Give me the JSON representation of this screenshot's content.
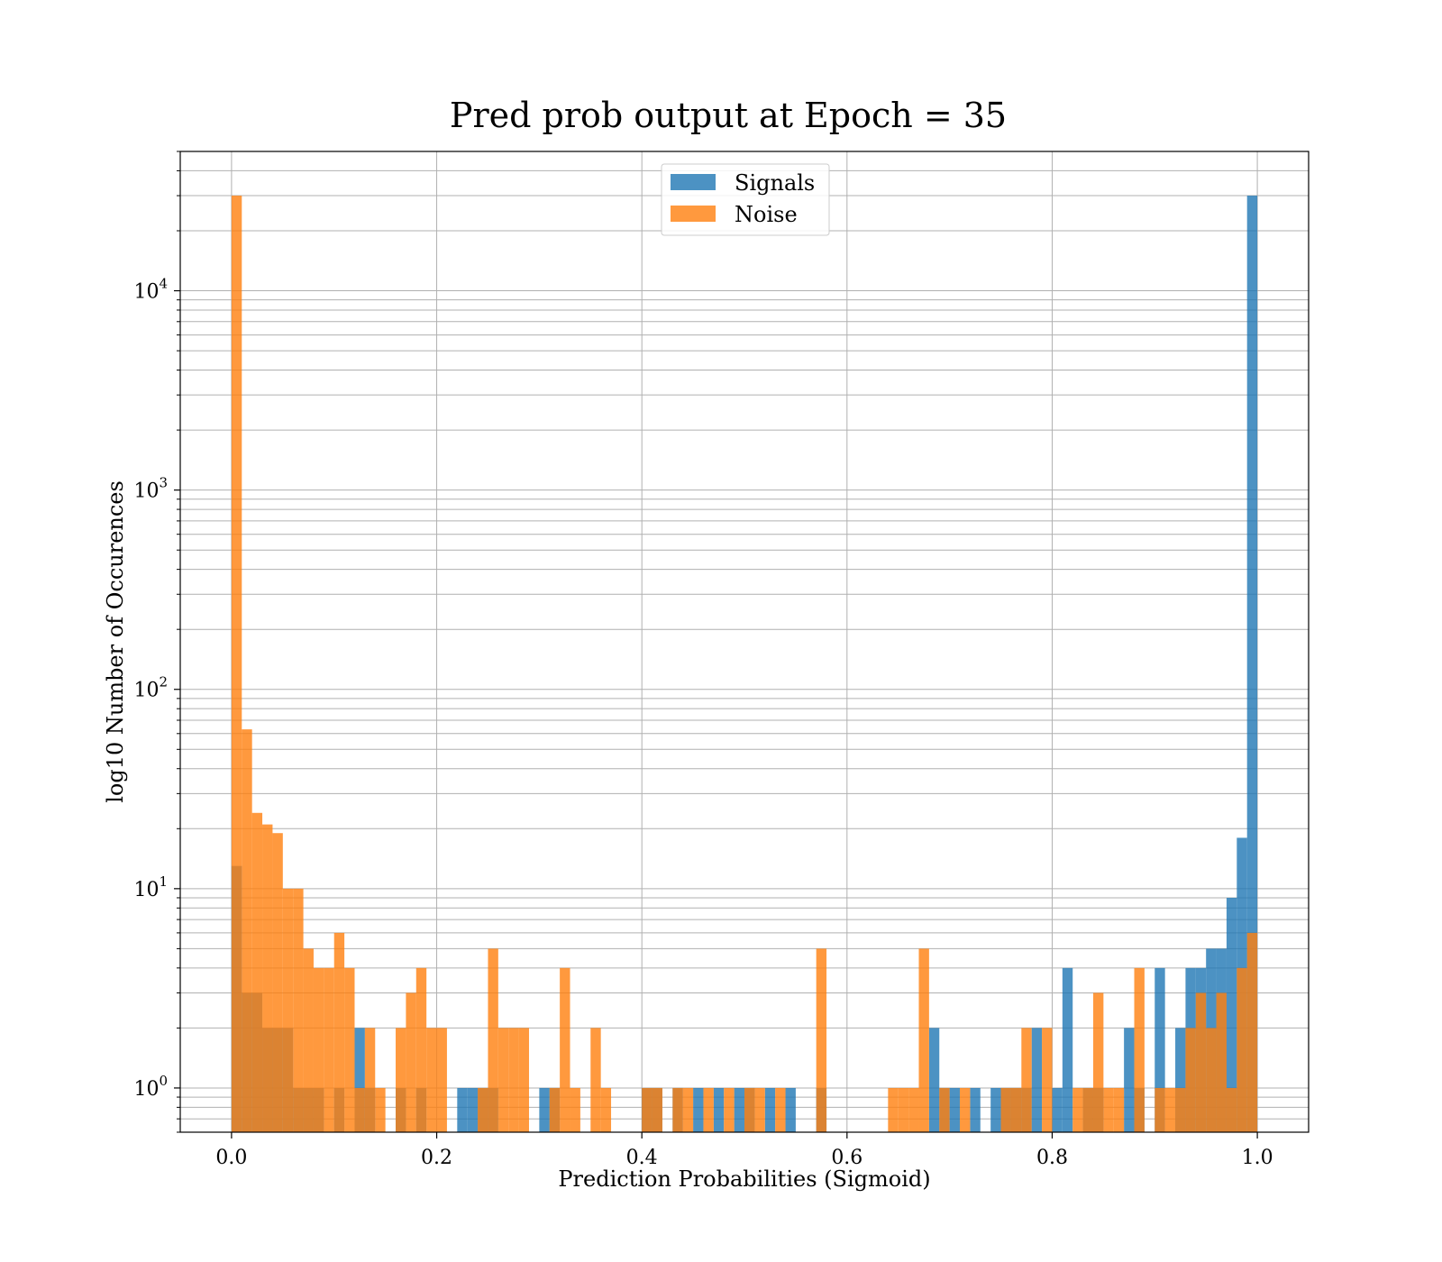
{
  "chart_data": {
    "type": "bar",
    "histogram": true,
    "title": "Pred prob output at Epoch = 35",
    "xlabel": "Prediction Probabilities (Sigmoid)",
    "ylabel": "log10 Number of Occurences",
    "xlim": [
      -0.05,
      1.05
    ],
    "ylim": [
      0.6,
      50000
    ],
    "yscale": "log",
    "bin_width": 0.01,
    "grid": true,
    "legend_position": "top-center",
    "x_ticks": [
      0.0,
      0.2,
      0.4,
      0.6,
      0.8,
      1.0
    ],
    "x_tick_labels": [
      "0.0",
      "0.2",
      "0.4",
      "0.6",
      "0.8",
      "1.0"
    ],
    "y_ticks": [
      1,
      10,
      100,
      1000,
      10000
    ],
    "y_tick_labels": [
      {
        "base": "10",
        "exp": "0"
      },
      {
        "base": "10",
        "exp": "1"
      },
      {
        "base": "10",
        "exp": "2"
      },
      {
        "base": "10",
        "exp": "3"
      },
      {
        "base": "10",
        "exp": "4"
      }
    ],
    "series": [
      {
        "name": "Signals",
        "color": "#1f77b4",
        "opacity": 0.8,
        "bins": [
          [
            0.0,
            13
          ],
          [
            0.01,
            3
          ],
          [
            0.02,
            3
          ],
          [
            0.03,
            2
          ],
          [
            0.04,
            2
          ],
          [
            0.05,
            2
          ],
          [
            0.06,
            1
          ],
          [
            0.07,
            1
          ],
          [
            0.08,
            1
          ],
          [
            0.1,
            1
          ],
          [
            0.12,
            2
          ],
          [
            0.13,
            1
          ],
          [
            0.16,
            1
          ],
          [
            0.18,
            1
          ],
          [
            0.22,
            1
          ],
          [
            0.23,
            1
          ],
          [
            0.24,
            1
          ],
          [
            0.25,
            1
          ],
          [
            0.3,
            1
          ],
          [
            0.31,
            1
          ],
          [
            0.4,
            1
          ],
          [
            0.41,
            1
          ],
          [
            0.43,
            1
          ],
          [
            0.45,
            1
          ],
          [
            0.47,
            1
          ],
          [
            0.49,
            1
          ],
          [
            0.5,
            1
          ],
          [
            0.52,
            1
          ],
          [
            0.54,
            1
          ],
          [
            0.57,
            1
          ],
          [
            0.68,
            2
          ],
          [
            0.69,
            1
          ],
          [
            0.7,
            1
          ],
          [
            0.72,
            1
          ],
          [
            0.74,
            1
          ],
          [
            0.75,
            1
          ],
          [
            0.76,
            1
          ],
          [
            0.77,
            1
          ],
          [
            0.78,
            2
          ],
          [
            0.8,
            1
          ],
          [
            0.81,
            4
          ],
          [
            0.83,
            1
          ],
          [
            0.84,
            1
          ],
          [
            0.87,
            2
          ],
          [
            0.88,
            1
          ],
          [
            0.9,
            4
          ],
          [
            0.92,
            2
          ],
          [
            0.93,
            4
          ],
          [
            0.94,
            4
          ],
          [
            0.95,
            5
          ],
          [
            0.96,
            5
          ],
          [
            0.97,
            9
          ],
          [
            0.98,
            18
          ],
          [
            0.99,
            30000
          ]
        ]
      },
      {
        "name": "Noise",
        "color": "#ff7f0e",
        "opacity": 0.8,
        "bins": [
          [
            0.0,
            30000
          ],
          [
            0.01,
            63
          ],
          [
            0.02,
            24
          ],
          [
            0.03,
            21
          ],
          [
            0.04,
            19
          ],
          [
            0.05,
            10
          ],
          [
            0.06,
            10
          ],
          [
            0.07,
            5
          ],
          [
            0.08,
            4
          ],
          [
            0.09,
            4
          ],
          [
            0.1,
            6
          ],
          [
            0.11,
            4
          ],
          [
            0.12,
            1
          ],
          [
            0.13,
            2
          ],
          [
            0.14,
            1
          ],
          [
            0.16,
            2
          ],
          [
            0.17,
            3
          ],
          [
            0.18,
            4
          ],
          [
            0.19,
            2
          ],
          [
            0.2,
            2
          ],
          [
            0.24,
            1
          ],
          [
            0.25,
            5
          ],
          [
            0.26,
            2
          ],
          [
            0.27,
            2
          ],
          [
            0.28,
            2
          ],
          [
            0.31,
            1
          ],
          [
            0.32,
            4
          ],
          [
            0.33,
            1
          ],
          [
            0.35,
            2
          ],
          [
            0.36,
            1
          ],
          [
            0.4,
            1
          ],
          [
            0.41,
            1
          ],
          [
            0.43,
            1
          ],
          [
            0.44,
            1
          ],
          [
            0.46,
            1
          ],
          [
            0.48,
            1
          ],
          [
            0.5,
            1
          ],
          [
            0.51,
            1
          ],
          [
            0.53,
            1
          ],
          [
            0.57,
            5
          ],
          [
            0.64,
            1
          ],
          [
            0.65,
            1
          ],
          [
            0.66,
            1
          ],
          [
            0.67,
            5
          ],
          [
            0.69,
            1
          ],
          [
            0.71,
            1
          ],
          [
            0.75,
            1
          ],
          [
            0.76,
            1
          ],
          [
            0.77,
            2
          ],
          [
            0.79,
            2
          ],
          [
            0.82,
            1
          ],
          [
            0.83,
            1
          ],
          [
            0.84,
            3
          ],
          [
            0.85,
            1
          ],
          [
            0.86,
            1
          ],
          [
            0.88,
            4
          ],
          [
            0.9,
            1
          ],
          [
            0.91,
            1
          ],
          [
            0.92,
            1
          ],
          [
            0.93,
            2
          ],
          [
            0.94,
            3
          ],
          [
            0.95,
            2
          ],
          [
            0.96,
            3
          ],
          [
            0.97,
            1
          ],
          [
            0.98,
            4
          ],
          [
            0.99,
            6
          ]
        ]
      }
    ]
  }
}
